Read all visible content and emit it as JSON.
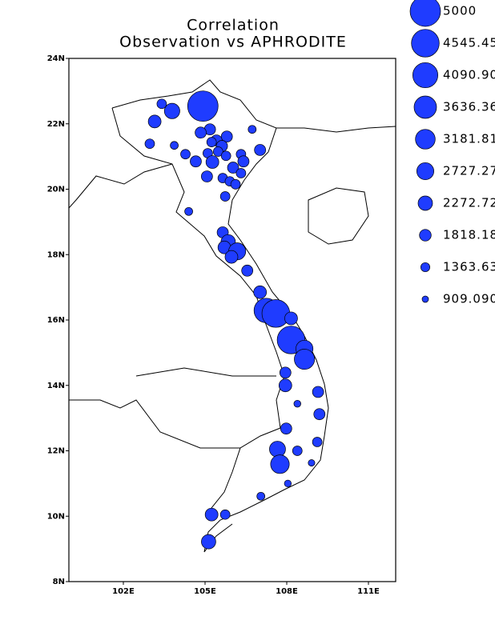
{
  "chart_data": {
    "type": "scatter",
    "title": "Correlation",
    "subtitle": "Observation vs APHRODITE",
    "color": "#1f3cff",
    "x": [
      104.92,
      103.79,
      103.15,
      103.41,
      102.97,
      103.87,
      105.18,
      104.84,
      105.8,
      105.42,
      105.62,
      105.24,
      105.48,
      105.1,
      105.77,
      105.27,
      104.66,
      104.28,
      106.32,
      107.02,
      106.73,
      106.41,
      106.03,
      106.32,
      105.07,
      105.65,
      105.91,
      106.12,
      105.74,
      104.4,
      105.65,
      105.85,
      105.71,
      106.18,
      105.97,
      106.55,
      107.02,
      107.25,
      107.6,
      108.16,
      108.16,
      108.65,
      108.65,
      107.95,
      107.95,
      108.39,
      109.15,
      109.2,
      107.98,
      109.12,
      107.66,
      107.75,
      108.39,
      108.91,
      108.04,
      107.05,
      105.24,
      105.74,
      105.13
    ],
    "y": [
      22.54,
      22.39,
      22.07,
      22.61,
      21.39,
      21.34,
      21.83,
      21.73,
      21.61,
      21.49,
      21.32,
      21.44,
      21.15,
      21.1,
      21.02,
      20.83,
      20.85,
      21.07,
      21.07,
      21.2,
      21.83,
      20.85,
      20.66,
      20.49,
      20.39,
      20.34,
      20.24,
      20.15,
      19.78,
      19.32,
      18.68,
      18.39,
      18.22,
      18.1,
      17.93,
      17.51,
      16.85,
      16.29,
      16.2,
      16.05,
      15.39,
      15.12,
      14.8,
      14.39,
      14.0,
      13.44,
      13.8,
      13.12,
      12.68,
      12.27,
      12.05,
      11.59,
      12.0,
      11.63,
      11.0,
      10.61,
      10.05,
      10.05,
      9.22
    ],
    "sizes": [
      5000,
      2450,
      2000,
      1450,
      1450,
      1180,
      1730,
      1730,
      1730,
      1730,
      1730,
      1450,
      1450,
      1450,
      1450,
      2000,
      1730,
      1450,
      1450,
      1730,
      1180,
      1730,
      1730,
      1450,
      1730,
      1450,
      1450,
      1450,
      1450,
      1180,
      1730,
      2270,
      2000,
      2730,
      2000,
      1730,
      2000,
      4000,
      4550,
      2000,
      4550,
      2730,
      3270,
      1730,
      2000,
      1000,
      1730,
      1730,
      1730,
      1450,
      2550,
      3000,
      1450,
      950,
      1000,
      1180,
      2000,
      1450,
      2270
    ],
    "xlim": [
      100,
      112
    ],
    "ylim": [
      8,
      24
    ],
    "xticks": [
      {
        "value": 102,
        "label": "102E"
      },
      {
        "value": 105,
        "label": "105E"
      },
      {
        "value": 108,
        "label": "108E"
      },
      {
        "value": 111,
        "label": "111E"
      }
    ],
    "yticks": [
      {
        "value": 8,
        "label": "8N"
      },
      {
        "value": 10,
        "label": "10N"
      },
      {
        "value": 12,
        "label": "12N"
      },
      {
        "value": 14,
        "label": "14N"
      },
      {
        "value": 16,
        "label": "16N"
      },
      {
        "value": 18,
        "label": "18N"
      },
      {
        "value": 20,
        "label": "20N"
      },
      {
        "value": 22,
        "label": "22N"
      },
      {
        "value": 24,
        "label": "24N"
      }
    ],
    "size_legend": [
      5000,
      {
        "value": 4545.45,
        "label": "4545.45"
      },
      {
        "value": 4090.9,
        "label": "4090.90"
      },
      {
        "value": 3636.36,
        "label": "3636.36"
      },
      {
        "value": 3181.81,
        "label": "3181.81"
      },
      {
        "value": 2727.27,
        "label": "2727.27"
      },
      {
        "value": 2272.72,
        "label": "2272.72"
      },
      {
        "value": 1818.18,
        "label": "1818.18"
      },
      {
        "value": 1363.63,
        "label": "1363.63"
      },
      {
        "value": 909.09,
        "label": "909.090"
      }
    ]
  }
}
